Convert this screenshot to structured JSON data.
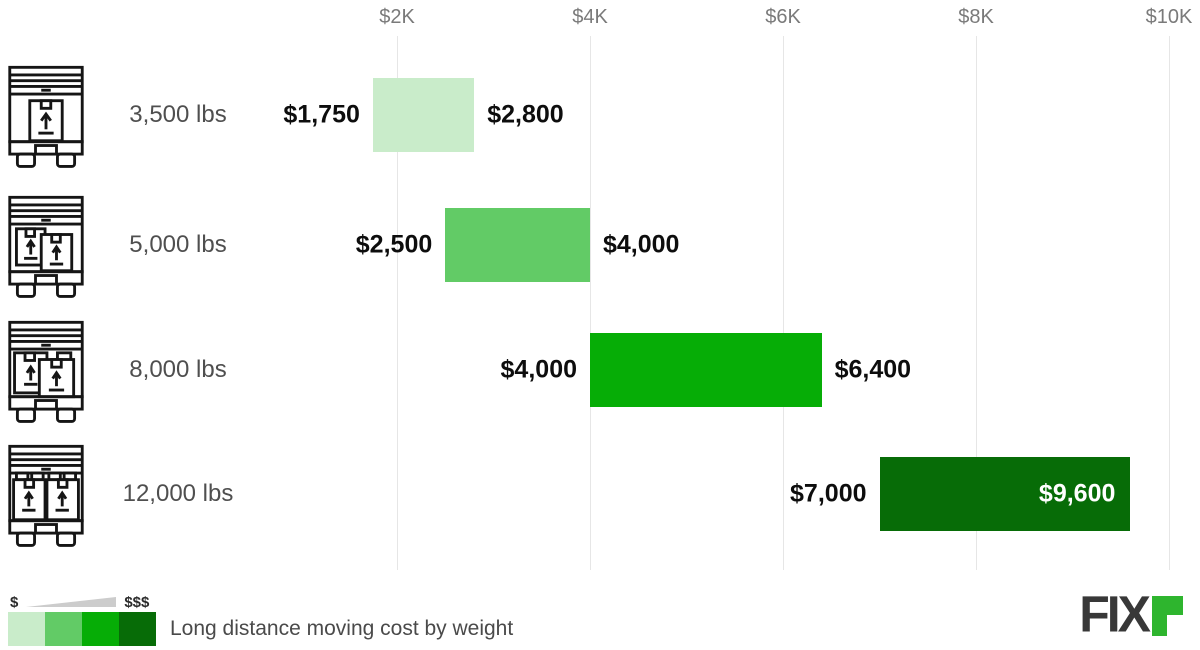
{
  "chart_data": {
    "type": "bar",
    "subtype": "horizontal-range",
    "title": "Long distance moving cost by weight",
    "x_axis": {
      "range": [
        0,
        10000
      ],
      "grid": true,
      "ticks": [
        {
          "value": 2000,
          "label": "$2K"
        },
        {
          "value": 4000,
          "label": "$4K"
        },
        {
          "value": 6000,
          "label": "$6K"
        },
        {
          "value": 8000,
          "label": "$8K"
        },
        {
          "value": 10000,
          "label": "$10K"
        }
      ]
    },
    "rows": [
      {
        "category": "3,500 lbs",
        "min": 1750,
        "max": 2800,
        "min_label": "$1,750",
        "max_label": "$2,800",
        "color": "#c9ecca",
        "icon": "truck-light-load-icon"
      },
      {
        "category": "5,000 lbs",
        "min": 2500,
        "max": 4000,
        "min_label": "$2,500",
        "max_label": "$4,000",
        "color": "#62cb66",
        "icon": "truck-medium-load-icon"
      },
      {
        "category": "8,000 lbs",
        "min": 4000,
        "max": 6400,
        "min_label": "$4,000",
        "max_label": "$6,400",
        "color": "#06ad06",
        "icon": "truck-large-load-icon"
      },
      {
        "category": "12,000 lbs",
        "min": 7000,
        "max": 9600,
        "min_label": "$7,000",
        "max_label": "$9,600",
        "color": "#076c07",
        "icon": "truck-full-load-icon",
        "label_inside": true,
        "max_label_color": "#ffffff"
      }
    ]
  },
  "legend": {
    "low_symbol": "$",
    "high_symbol": "$$$",
    "wedge_color": "#cccccc",
    "swatches": [
      "#c9ecca",
      "#62cb66",
      "#06ad06",
      "#076c07"
    ],
    "caption": "Long distance moving cost by weight"
  },
  "branding": {
    "logo_text": "FIX",
    "logo_accent_glyph": "r",
    "logo_text_color": "#383838",
    "logo_accent_color": "#2eb52e"
  }
}
